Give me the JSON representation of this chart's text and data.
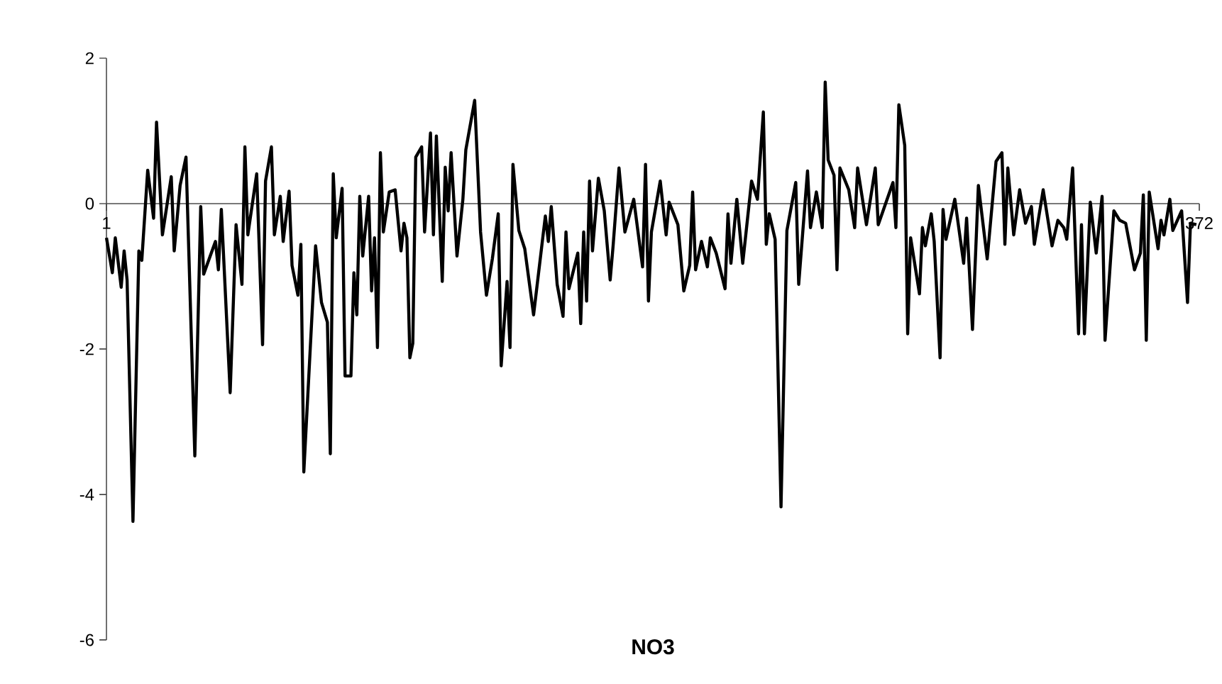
{
  "chart_data": {
    "type": "line",
    "title": "NO3",
    "color": "#000000",
    "marker": "none",
    "line_style": "solid",
    "xlim": [
      1,
      372
    ],
    "xticks": [
      1,
      372
    ],
    "ylim": [
      -6,
      2
    ],
    "yticks": [
      -6,
      -4,
      -2,
      0,
      2
    ],
    "x": [
      1,
      3,
      4,
      6,
      7,
      8,
      10,
      12,
      13,
      15,
      17,
      18,
      20,
      23,
      24,
      26,
      28,
      29,
      31,
      33,
      34,
      38,
      39,
      40,
      43,
      45,
      47,
      48,
      49,
      52,
      54,
      55,
      57,
      58,
      60,
      61,
      63,
      64,
      66,
      67,
      68,
      72,
      74,
      76,
      77,
      78,
      79,
      81,
      82,
      84,
      85,
      86,
      87,
      88,
      90,
      91,
      92,
      93,
      94,
      95,
      97,
      99,
      101,
      102,
      103,
      104,
      105,
      106,
      108,
      109,
      111,
      112,
      113,
      115,
      116,
      117,
      118,
      120,
      122,
      123,
      126,
      128,
      130,
      132,
      134,
      135,
      137,
      138,
      139,
      141,
      143,
      146,
      150,
      151,
      152,
      154,
      156,
      157,
      158,
      161,
      162,
      163,
      164,
      165,
      166,
      168,
      170,
      172,
      173,
      175,
      177,
      180,
      183,
      184,
      185,
      186,
      189,
      191,
      192,
      195,
      197,
      199,
      200,
      201,
      203,
      205,
      206,
      208,
      211,
      212,
      213,
      215,
      217,
      220,
      222,
      224,
      225,
      226,
      228,
      230,
      232,
      235,
      236,
      239,
      240,
      242,
      244,
      245,
      246,
      248,
      249,
      250,
      253,
      255,
      256,
      259,
      262,
      263,
      268,
      269,
      270,
      272,
      273,
      274,
      277,
      278,
      279,
      281,
      282,
      284,
      285,
      286,
      289,
      292,
      293,
      295,
      297,
      300,
      303,
      305,
      306,
      307,
      309,
      311,
      313,
      315,
      316,
      319,
      322,
      324,
      326,
      327,
      329,
      331,
      332,
      333,
      335,
      337,
      339,
      340,
      343,
      345,
      347,
      350,
      352,
      353,
      354,
      355,
      358,
      359,
      360,
      362,
      363,
      366,
      368,
      369,
      371
    ],
    "values": [
      -0.47,
      -0.95,
      -0.47,
      -1.15,
      -0.65,
      -1.05,
      -4.37,
      -0.65,
      -0.78,
      0.46,
      -0.2,
      1.12,
      -0.43,
      0.37,
      -0.65,
      0.25,
      0.64,
      -0.72,
      -3.47,
      -0.04,
      -0.97,
      -0.52,
      -0.91,
      -0.08,
      -2.6,
      -0.29,
      -1.11,
      0.78,
      -0.43,
      0.41,
      -1.94,
      0.31,
      0.78,
      -0.43,
      0.1,
      -0.52,
      0.17,
      -0.85,
      -1.26,
      -0.56,
      -3.69,
      -0.58,
      -1.36,
      -1.63,
      -3.44,
      0.41,
      -0.47,
      0.21,
      -2.37,
      -2.37,
      -0.95,
      -1.53,
      0.1,
      -0.72,
      0.1,
      -1.2,
      -0.47,
      -1.98,
      0.7,
      -0.39,
      0.16,
      0.19,
      -0.65,
      -0.27,
      -0.47,
      -2.12,
      -1.92,
      0.64,
      0.78,
      -0.39,
      0.97,
      -0.43,
      0.93,
      -1.07,
      0.5,
      -0.1,
      0.7,
      -0.72,
      0.06,
      0.74,
      1.42,
      -0.39,
      -1.26,
      -0.76,
      -0.14,
      -2.23,
      -1.07,
      -1.98,
      0.54,
      -0.37,
      -0.62,
      -1.53,
      -0.17,
      -0.52,
      -0.04,
      -1.11,
      -1.55,
      -0.39,
      -1.17,
      -0.68,
      -1.65,
      -0.39,
      -1.34,
      0.31,
      -0.65,
      0.35,
      -0.1,
      -1.05,
      -0.58,
      0.49,
      -0.39,
      0.06,
      -0.87,
      0.54,
      -1.34,
      -0.39,
      0.31,
      -0.43,
      0.02,
      -0.29,
      -1.2,
      -0.85,
      0.16,
      -0.91,
      -0.52,
      -0.87,
      -0.47,
      -0.68,
      -1.17,
      -0.14,
      -0.82,
      0.06,
      -0.82,
      0.31,
      0.06,
      1.26,
      -0.56,
      -0.14,
      -0.49,
      -4.17,
      -0.37,
      0.29,
      -1.11,
      0.45,
      -0.33,
      0.16,
      -0.33,
      1.67,
      0.6,
      0.39,
      -0.91,
      0.49,
      0.19,
      -0.33,
      0.49,
      -0.29,
      0.49,
      -0.29,
      0.29,
      -0.33,
      1.36,
      0.8,
      -1.79,
      -0.47,
      -1.24,
      -0.33,
      -0.58,
      -0.14,
      -0.52,
      -2.12,
      -0.08,
      -0.49,
      0.06,
      -0.82,
      -0.2,
      -1.73,
      0.25,
      -0.76,
      0.58,
      0.7,
      -0.56,
      0.49,
      -0.43,
      0.19,
      -0.27,
      -0.04,
      -0.56,
      0.19,
      -0.58,
      -0.23,
      -0.33,
      -0.49,
      0.49,
      -1.79,
      -0.29,
      -1.79,
      0.02,
      -0.68,
      0.1,
      -1.88,
      -0.1,
      -0.23,
      -0.27,
      -0.91,
      -0.68,
      0.12,
      -1.88,
      0.16,
      -0.62,
      -0.23,
      -0.43,
      0.06,
      -0.37,
      -0.1,
      -1.36,
      -0.27,
      -0.29
    ]
  }
}
